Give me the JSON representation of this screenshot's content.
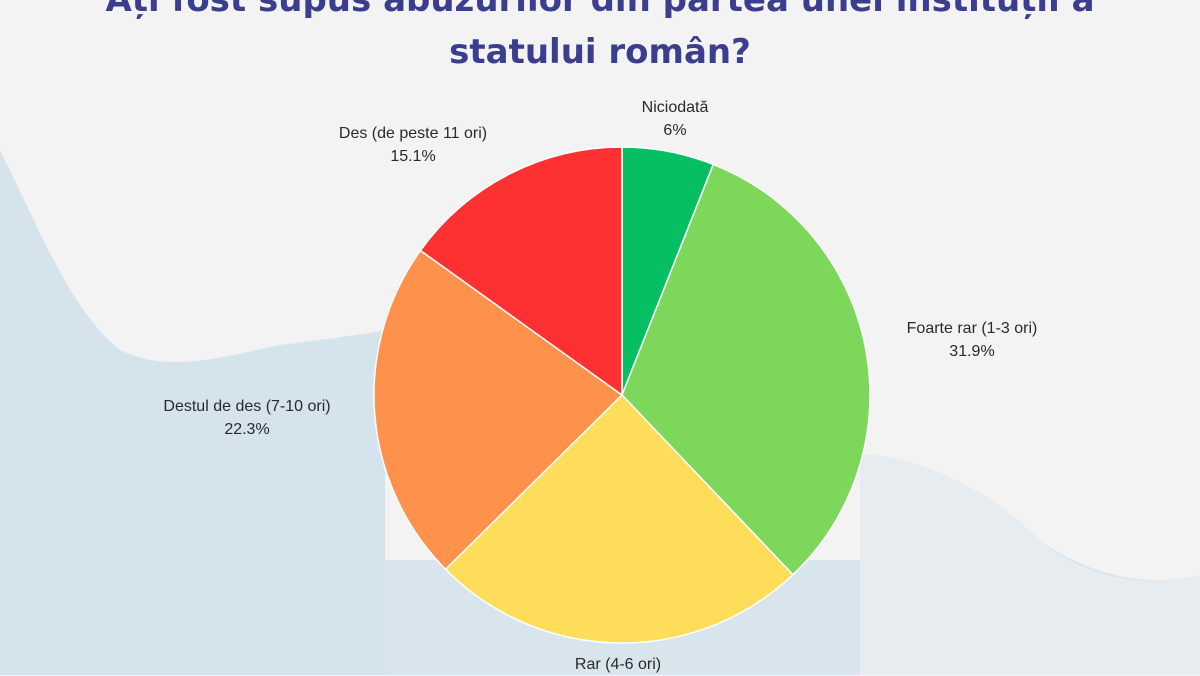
{
  "title_lines": [
    "Ați fost supus abuzurilor din partea unei instituții a",
    "statului român?"
  ],
  "colors": {
    "title": "#3b3e8f",
    "background": "#f3f3f3",
    "wave": "#d4e3ec"
  },
  "chart_data": {
    "type": "pie",
    "title": "Ați fost supus abuzurilor din partea unei instituții a statului român?",
    "unit": "%",
    "slices": [
      {
        "label": "Niciodată",
        "value": 6,
        "display": "6%",
        "color": "#06bf62"
      },
      {
        "label": "Foarte rar (1-3 ori)",
        "value": 31.9,
        "display": "31.9%",
        "color": "#7dd75a"
      },
      {
        "label": "Rar (4-6 ori)",
        "value": 24.7,
        "display": "",
        "color": "#fddd5a"
      },
      {
        "label": "Destul de des (7-10 ori)",
        "value": 22.3,
        "display": "22.3%",
        "color": "#fe924d"
      },
      {
        "label": "Des (de peste 11 ori)",
        "value": 15.1,
        "display": "15.1%",
        "color": "#fd3131"
      }
    ],
    "start_angle_deg": 0,
    "direction": "clockwise",
    "legend": "none"
  }
}
